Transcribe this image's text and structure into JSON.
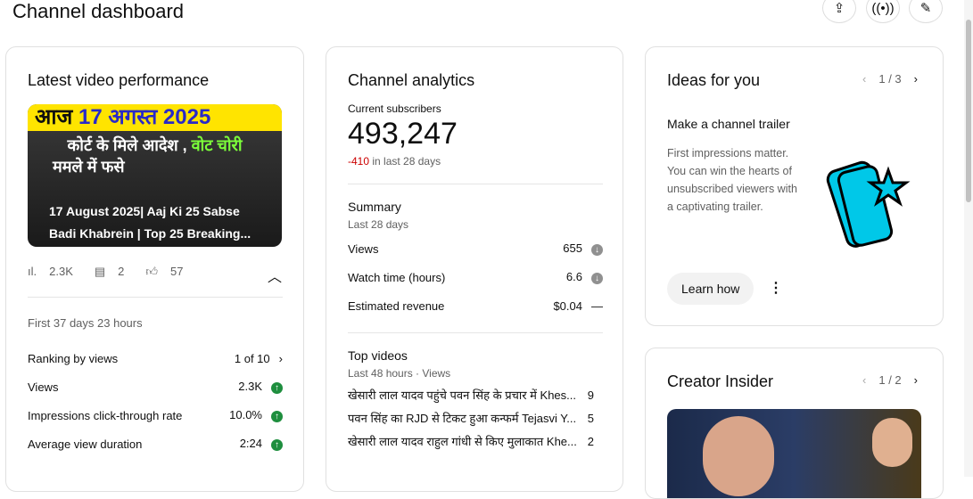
{
  "header": {
    "title": "Channel dashboard",
    "icons": [
      "upload-icon",
      "live-icon",
      "edit-icon"
    ]
  },
  "latest": {
    "title": "Latest video performance",
    "thumb": {
      "line1a": "आज ",
      "line1b": "17 अगस्त 2025",
      "line2a": "कोर्ट के मिले आदेश , ",
      "line2b": "वोट चोरी",
      "line3": "ममले में फसे",
      "caption1": "17 August 2025| Aaj Ki 25 Sabse",
      "caption2": "Badi Khabrein | Top 25 Breaking..."
    },
    "views": "2.3K",
    "comments": "2",
    "likes": "57",
    "period": "First 37 days 23 hours",
    "rows": [
      {
        "label": "Ranking by views",
        "value": "1 of 10"
      },
      {
        "label": "Views",
        "value": "2.3K"
      },
      {
        "label": "Impressions click-through rate",
        "value": "10.0%"
      },
      {
        "label": "Average view duration",
        "value": "2:24"
      }
    ]
  },
  "analytics": {
    "title": "Channel analytics",
    "subs_label": "Current subscribers",
    "subs": "493,247",
    "change": "-410",
    "change_suffix": " in last 28 days",
    "summary": "Summary",
    "summary_period": "Last 28 days",
    "rows": [
      {
        "label": "Views",
        "value": "655"
      },
      {
        "label": "Watch time (hours)",
        "value": "6.6"
      },
      {
        "label": "Estimated revenue",
        "value": "$0.04"
      }
    ],
    "top": "Top videos",
    "top_period": "Last 48 hours · Views",
    "videos": [
      {
        "title": "खेसारी लाल यादव पहुंचे पवन सिंह के प्रचार में Khes...",
        "views": "9"
      },
      {
        "title": "पवन सिंह का RJD से टिकट हुआ कन्फर्म Tejasvi Y...",
        "views": "5"
      },
      {
        "title": "खेसारी लाल यादव राहुल गांधी से किए मुलाकात Khe...",
        "views": "2"
      }
    ]
  },
  "ideas": {
    "title": "Ideas for you",
    "page": "1 / 3",
    "subtitle": "Make a channel trailer",
    "body": "First impressions matter. You can win the hearts of unsubscribed viewers with a captivating trailer.",
    "button": "Learn how"
  },
  "insider": {
    "title": "Creator Insider",
    "page": "1 / 2"
  },
  "colors": {
    "negative": "#cc0000",
    "positive": "#1e8e3e",
    "accent": "#00c8e8"
  }
}
